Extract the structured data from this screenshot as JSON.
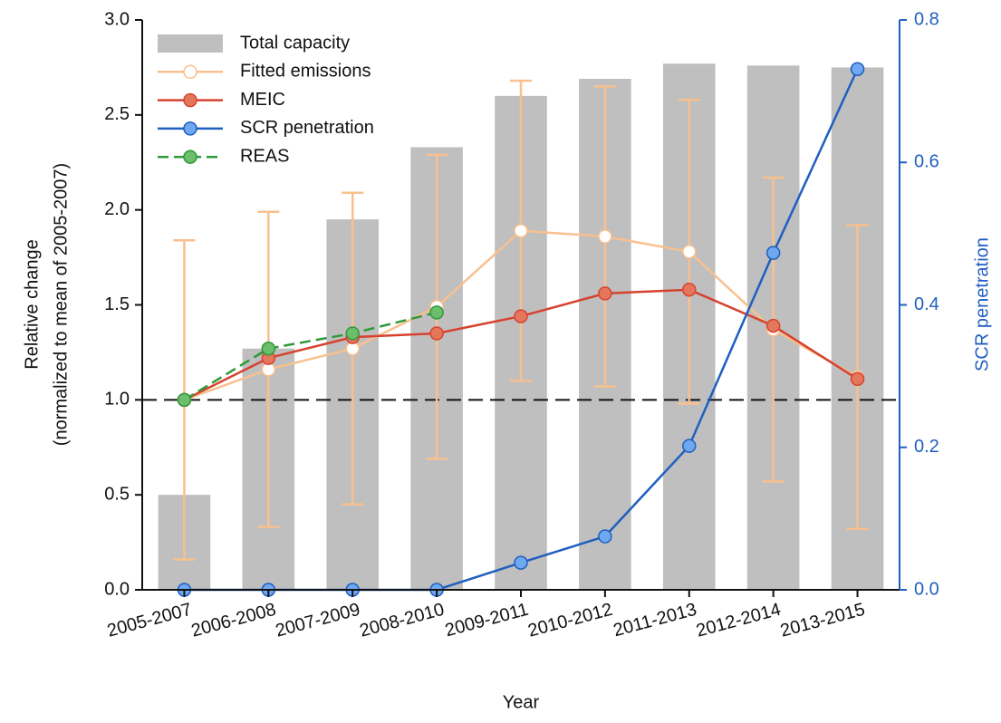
{
  "chart_data": {
    "type": "bar",
    "x_label": "Year",
    "y_label": [
      "Relative change",
      "(normalized to mean of 2005-2007)"
    ],
    "y2_label": "SCR penetration",
    "categories": [
      "2005-2007",
      "2006-2008",
      "2007-2009",
      "2008-2010",
      "2009-2011",
      "2010-2012",
      "2011-2013",
      "2012-2014",
      "2013-2015"
    ],
    "ylim": [
      0,
      3
    ],
    "yticks": [
      {
        "value": 0,
        "label": "0.0"
      },
      {
        "value": 0.5,
        "label": "0.5"
      },
      {
        "value": 1,
        "label": "1.0"
      },
      {
        "value": 1.5,
        "label": "1.5"
      },
      {
        "value": 2,
        "label": "2.0"
      },
      {
        "value": 2.5,
        "label": "2.5"
      },
      {
        "value": 3,
        "label": "3.0"
      }
    ],
    "y2lim": [
      0,
      0.8
    ],
    "y2ticks": [
      {
        "value": 0,
        "label": "0.0"
      },
      {
        "value": 0.2,
        "label": "0.2"
      },
      {
        "value": 0.4,
        "label": "0.4"
      },
      {
        "value": 0.6,
        "label": "0.6"
      },
      {
        "value": 0.8,
        "label": "0.8"
      }
    ],
    "hline": 1,
    "legend": "upper left",
    "series": [
      {
        "name": "Total capacity",
        "type": "bar",
        "color": "#bfbfbf",
        "values": [
          0.5,
          1.27,
          1.95,
          2.33,
          2.6,
          2.69,
          2.77,
          2.76,
          2.75
        ]
      },
      {
        "name": "Fitted emissions",
        "type": "line",
        "color": "#f8c08e",
        "marker_fill": "#ffffff",
        "values": [
          1.0,
          1.16,
          1.27,
          1.49,
          1.89,
          1.86,
          1.78,
          1.37,
          1.12
        ],
        "errors": [
          0.84,
          0.83,
          0.82,
          0.8,
          0.79,
          0.79,
          0.8,
          0.8,
          0.8
        ]
      },
      {
        "name": "MEIC",
        "type": "line",
        "color": "#d7422f",
        "marker_fill": "#e4775b",
        "values": [
          1.0,
          1.22,
          1.33,
          1.35,
          1.44,
          1.56,
          1.58,
          1.39,
          1.11
        ]
      },
      {
        "name": "SCR penetration",
        "type": "line",
        "axis": "y2",
        "color": "#1f5fbf",
        "marker_fill": "#6fa8f0",
        "values": [
          0,
          0,
          0,
          0,
          0.038,
          0.075,
          0.202,
          0.473,
          0.731
        ]
      },
      {
        "name": "REAS",
        "type": "line",
        "dashed": true,
        "color": "#2e9a3a",
        "marker_fill": "#6cbd6c",
        "values": [
          1.0,
          1.27,
          1.35,
          1.46,
          null,
          null,
          null,
          null,
          null
        ]
      }
    ]
  }
}
